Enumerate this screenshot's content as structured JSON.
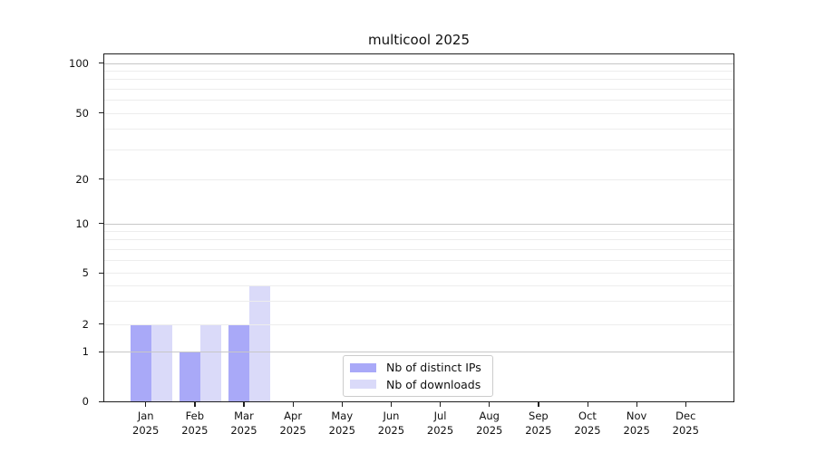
{
  "chart_data": {
    "type": "bar",
    "title": "multicool 2025",
    "categories": [
      "Jan 2025",
      "Feb 2025",
      "Mar 2025",
      "Apr 2025",
      "May 2025",
      "Jun 2025",
      "Jul 2025",
      "Aug 2025",
      "Sep 2025",
      "Oct 2025",
      "Nov 2025",
      "Dec 2025"
    ],
    "series": [
      {
        "name": "Nb of distinct IPs",
        "color": "#a9a9f8",
        "values": [
          2,
          1,
          2,
          0,
          0,
          0,
          0,
          0,
          0,
          0,
          0,
          0
        ]
      },
      {
        "name": "Nb of downloads",
        "color": "#dadaf9",
        "values": [
          2,
          2,
          4,
          0,
          0,
          0,
          0,
          0,
          0,
          0,
          0,
          0
        ]
      }
    ],
    "yticks": [
      0,
      1,
      2,
      5,
      10,
      20,
      50,
      100
    ],
    "ylim": [
      0,
      100
    ],
    "xlabel": "",
    "ylabel": "",
    "y_scale": "log-like (compressed toward zero)",
    "grid": "horizontal minor and major gridlines",
    "legend_position": "lower center"
  },
  "style": {
    "grid_minor_color": "#ededed",
    "grid_major_color": "#c7c7c7",
    "spine_color": "#1f1f1f",
    "background": "#ffffff"
  }
}
